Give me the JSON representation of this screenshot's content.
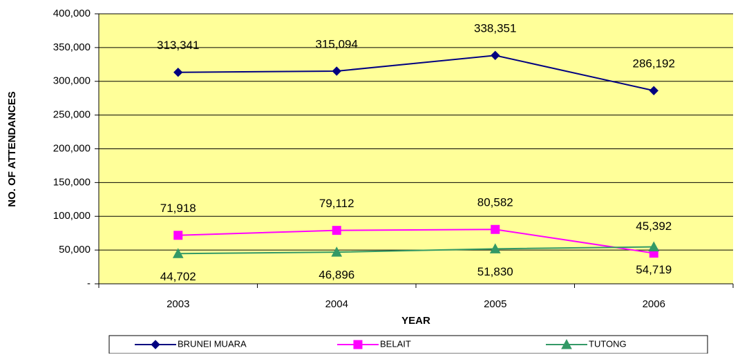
{
  "chart_data": {
    "type": "line",
    "y_label": "NO. OF ATTENDANCES",
    "x_label": "YEAR",
    "categories": [
      "2003",
      "2004",
      "2005",
      "2006"
    ],
    "series": [
      {
        "name": "BRUNEI MUARA",
        "color": "#000080",
        "marker": "diamond",
        "values": [
          313341,
          315094,
          338351,
          286192
        ],
        "value_labels": [
          "313,341",
          "315,094",
          "338,351",
          "286,192"
        ]
      },
      {
        "name": "BELAIT",
        "color": "#ff00ff",
        "marker": "square",
        "values": [
          71918,
          79112,
          80582,
          45392
        ],
        "value_labels": [
          "71,918",
          "79,112",
          "80,582",
          "45,392"
        ]
      },
      {
        "name": "TUTONG",
        "color": "#339966",
        "marker": "triangle",
        "values": [
          44702,
          46896,
          51830,
          54719
        ],
        "value_labels": [
          "44,702",
          "46,896",
          "51,830",
          "54,719"
        ]
      }
    ],
    "ylim": [
      0,
      400000
    ],
    "yticks": [
      {
        "value": 0,
        "label": "-"
      },
      {
        "value": 50000,
        "label": "50,000"
      },
      {
        "value": 100000,
        "label": "100,000"
      },
      {
        "value": 150000,
        "label": "150,000"
      },
      {
        "value": 200000,
        "label": "200,000"
      },
      {
        "value": 250000,
        "label": "250,000"
      },
      {
        "value": 300000,
        "label": "300,000"
      },
      {
        "value": 350000,
        "label": "350,000"
      },
      {
        "value": 400000,
        "label": "400,000"
      }
    ],
    "grid": true,
    "background": "#ffff99",
    "legend": "bottom"
  }
}
